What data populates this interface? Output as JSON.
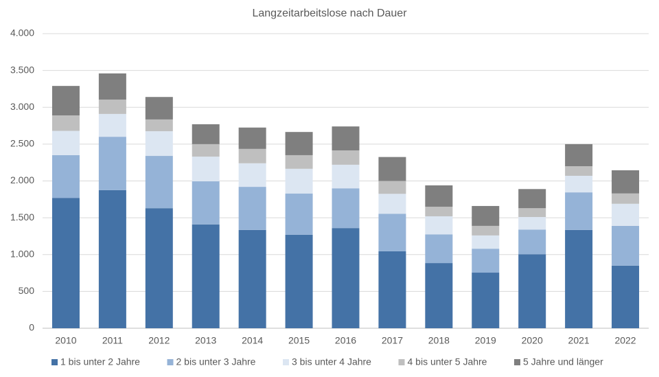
{
  "chart_data": {
    "type": "stacked_bar",
    "title": "Langzeitarbeitslose nach Dauer",
    "categories": [
      "2010",
      "2011",
      "2012",
      "2013",
      "2014",
      "2015",
      "2016",
      "2017",
      "2018",
      "2019",
      "2020",
      "2021",
      "2022"
    ],
    "series": [
      {
        "name": "1 bis unter 2 Jahre",
        "color": "#4472a6",
        "values": [
          1770,
          1875,
          1630,
          1410,
          1335,
          1270,
          1360,
          1045,
          885,
          755,
          1005,
          1335,
          850
        ]
      },
      {
        "name": "2 bis unter 3 Jahre",
        "color": "#95b3d7",
        "values": [
          580,
          725,
          710,
          585,
          585,
          560,
          540,
          510,
          390,
          325,
          335,
          510,
          540
        ]
      },
      {
        "name": "3 bis unter 4 Jahre",
        "color": "#dce6f2",
        "values": [
          330,
          310,
          335,
          335,
          320,
          335,
          320,
          270,
          245,
          180,
          170,
          225,
          300
        ]
      },
      {
        "name": "4 bis unter 5 Jahre",
        "color": "#bfbfbf",
        "values": [
          210,
          195,
          160,
          170,
          195,
          185,
          195,
          175,
          130,
          130,
          120,
          130,
          140
        ]
      },
      {
        "name": "5 Jahre und länger",
        "color": "#7f7f7f",
        "values": [
          400,
          355,
          305,
          270,
          290,
          315,
          325,
          325,
          290,
          270,
          260,
          300,
          315
        ]
      }
    ],
    "ylim": [
      0,
      4000
    ],
    "yticks": [
      0,
      500,
      {
        "value": 1000,
        "label": "1.000"
      },
      {
        "value": 1500,
        "label": "1.500"
      },
      {
        "value": 2000,
        "label": "2.000"
      },
      {
        "value": 2500,
        "label": "2.500"
      },
      {
        "value": 3000,
        "label": "3.000"
      },
      {
        "value": 3500,
        "label": "3.500"
      },
      {
        "value": 4000,
        "label": "4.000"
      }
    ],
    "grid": true,
    "legend": "bottom"
  }
}
